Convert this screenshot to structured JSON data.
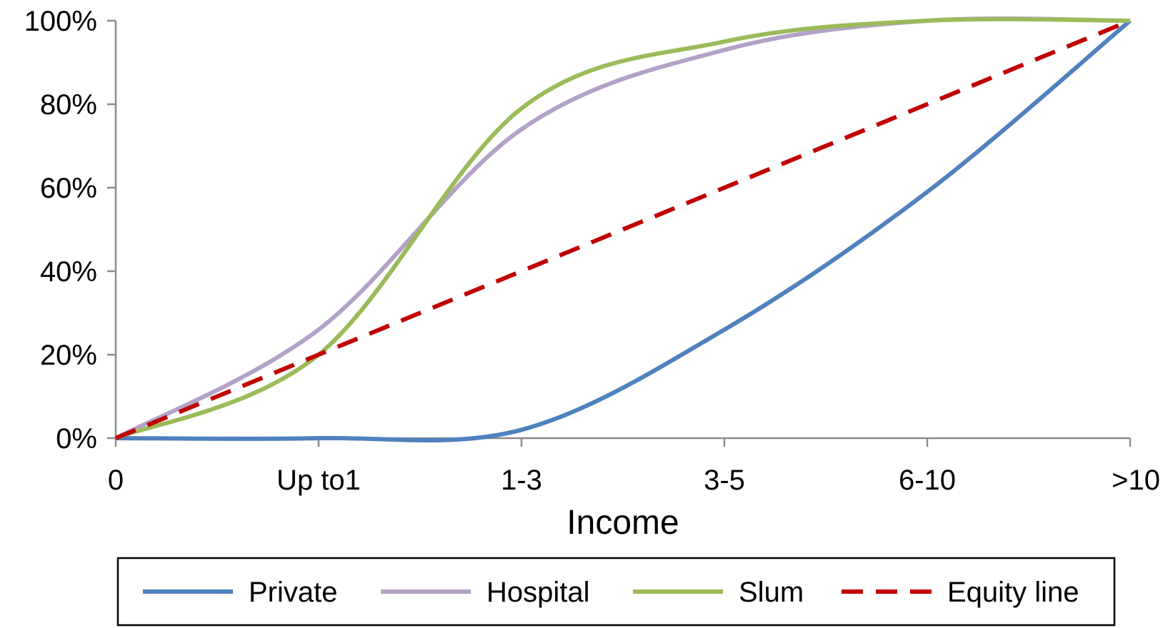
{
  "chart_data": {
    "type": "line",
    "title": "",
    "xlabel": "Income",
    "ylabel": "",
    "categories": [
      "0",
      "Up to1",
      "1-3",
      "3-5",
      "6-10",
      ">10"
    ],
    "y_tick_labels": [
      "0%",
      "20%",
      "40%",
      "60%",
      "80%",
      "100%"
    ],
    "ylim": [
      0,
      100
    ],
    "grid": false,
    "legend_position": "bottom",
    "series": [
      {
        "name": "Private",
        "color": "#4F81BD",
        "dashed": false,
        "values": [
          0,
          0,
          2,
          26,
          59,
          100
        ]
      },
      {
        "name": "Hospital",
        "color": "#B3A2C7",
        "dashed": false,
        "values": [
          0,
          26,
          74,
          93,
          100,
          100
        ]
      },
      {
        "name": "Slum",
        "color": "#9BBB59",
        "dashed": false,
        "values": [
          0,
          20,
          79,
          95,
          100,
          100
        ]
      },
      {
        "name": "Equity line",
        "color": "#C00000",
        "dashed": true,
        "values": [
          0,
          20,
          40,
          60,
          80,
          100
        ]
      }
    ]
  }
}
